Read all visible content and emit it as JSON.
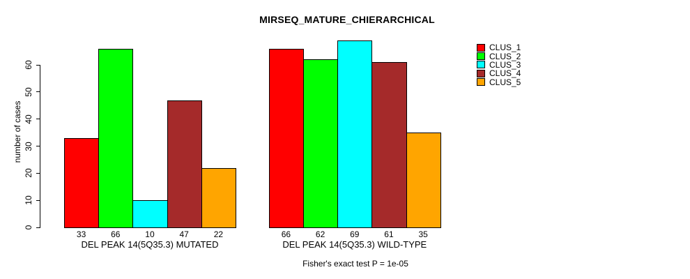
{
  "chart_data": {
    "type": "bar",
    "title": "MIRSEQ_MATURE_CHIERARCHICAL",
    "ylabel": "number of cases",
    "xlabel": "",
    "caption": "Fisher's exact test P = 1e-05",
    "grid": false,
    "legend_position": "top-right",
    "yticks": [
      0,
      10,
      20,
      30,
      40,
      50,
      60
    ],
    "ylim": [
      0,
      69
    ],
    "categories": [
      "DEL PEAK 14(5Q35.3) MUTATED",
      "DEL PEAK 14(5Q35.3) WILD-TYPE"
    ],
    "series": [
      {
        "name": "CLUS_1",
        "color": "#ff0000",
        "values": [
          33,
          66
        ]
      },
      {
        "name": "CLUS_2",
        "color": "#00ff00",
        "values": [
          66,
          62
        ]
      },
      {
        "name": "CLUS_3",
        "color": "#00ffff",
        "values": [
          10,
          69
        ]
      },
      {
        "name": "CLUS_4",
        "color": "#a52a2a",
        "values": [
          47,
          61
        ]
      },
      {
        "name": "CLUS_5",
        "color": "#ffa500",
        "values": [
          22,
          35
        ]
      }
    ],
    "bar_value_labels": [
      [
        "33",
        "66",
        "10",
        "47",
        "22"
      ],
      [
        "66",
        "62",
        "69",
        "61",
        "35"
      ]
    ]
  }
}
